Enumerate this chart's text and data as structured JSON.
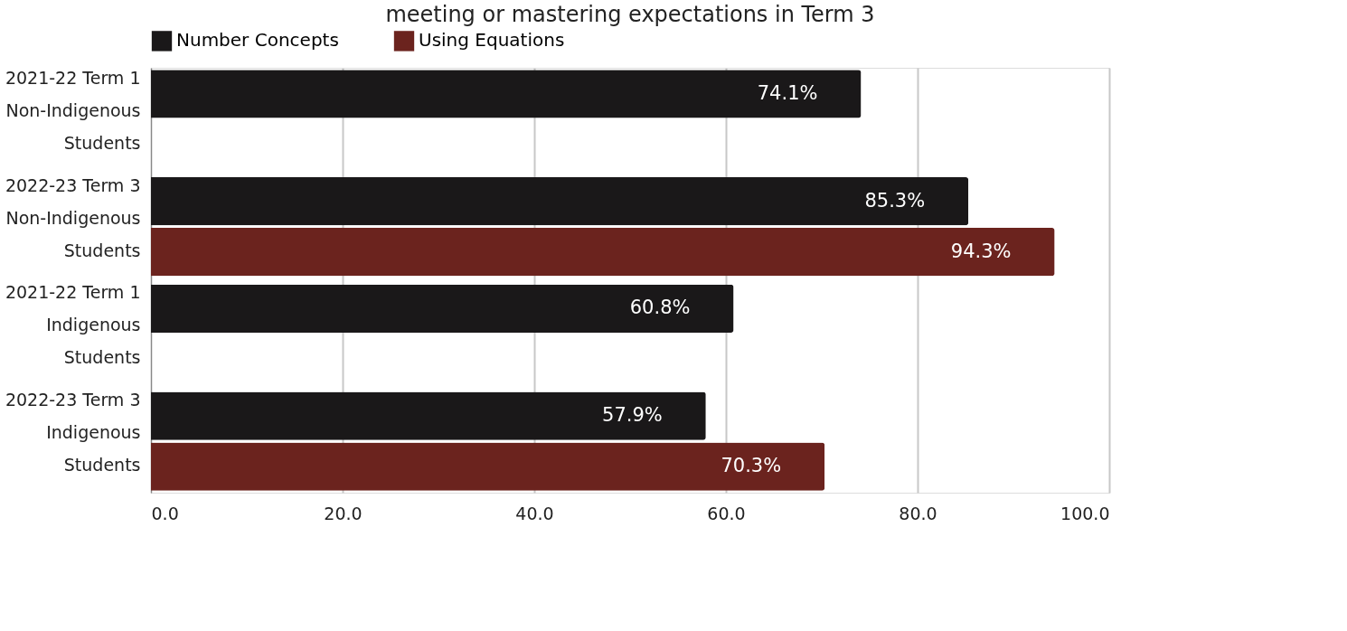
{
  "chart_data": {
    "type": "bar",
    "orientation": "horizontal",
    "title": "meeting or mastering expectations in Term 3",
    "categories": [
      "2021-22 Term 1 Non-Indigenous Students",
      "2022-23 Term 3 Non-Indigenous Students",
      "2021-22 Term 1 Indigenous Students",
      "2022-23 Term 3 Indigenous Students"
    ],
    "series": [
      {
        "name": "Number Concepts",
        "color": "#1a1819",
        "values": [
          74.1,
          85.3,
          60.8,
          57.9
        ],
        "value_labels": [
          "74.1%",
          "85.3%",
          "60.8%",
          "57.9%"
        ]
      },
      {
        "name": "Using Equations",
        "color": "#6b231e",
        "values": [
          null,
          94.3,
          null,
          70.3
        ],
        "value_labels": [
          null,
          "94.3%",
          null,
          "70.3%"
        ]
      }
    ],
    "xlim": [
      0,
      100
    ],
    "xticks": [
      {
        "value": 0,
        "label": "0.0"
      },
      {
        "value": 20,
        "label": "20.0"
      },
      {
        "value": 40,
        "label": "40.0"
      },
      {
        "value": 60,
        "label": "60.0"
      },
      {
        "value": 80,
        "label": "80.0"
      },
      {
        "value": 100,
        "label": "100.0"
      }
    ],
    "grid": "x",
    "legend": "top"
  }
}
